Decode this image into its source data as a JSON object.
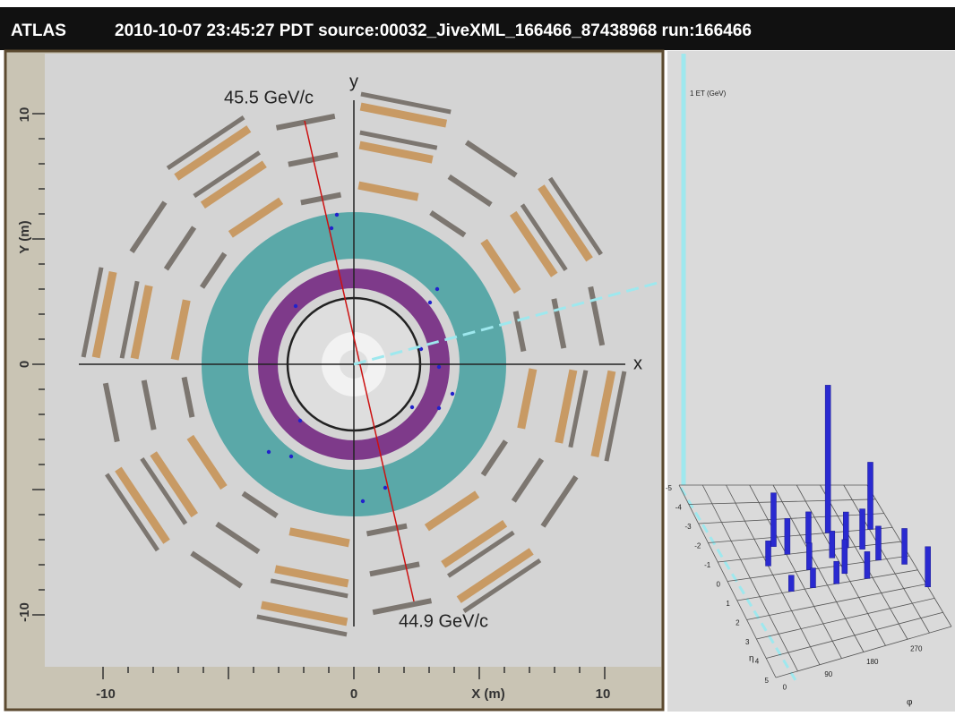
{
  "header": {
    "experiment": "ATLAS",
    "event_info": "2010-10-07 23:45:27 PDT source:00032_JiveXML_166466_87438968 run:166466"
  },
  "xy_view": {
    "x_axis": {
      "title": "X (m)",
      "ticks": [
        -10,
        0,
        10
      ]
    },
    "y_axis": {
      "title": "Y (m)",
      "ticks": [
        10,
        0,
        -10
      ]
    },
    "axis_labels": {
      "x": "x",
      "y": "y"
    },
    "annotations": [
      "45.5 GeV/c",
      "44.9 GeV/c"
    ]
  },
  "lego_plot": {
    "z_label": "1 ET (GeV)",
    "eta_label": "η",
    "phi_label": "φ",
    "eta_ticks": [
      -5,
      -4,
      -3,
      -2,
      -1,
      0,
      1,
      2,
      3,
      4,
      5
    ],
    "phi_ticks": [
      0,
      90,
      180,
      270
    ]
  }
}
